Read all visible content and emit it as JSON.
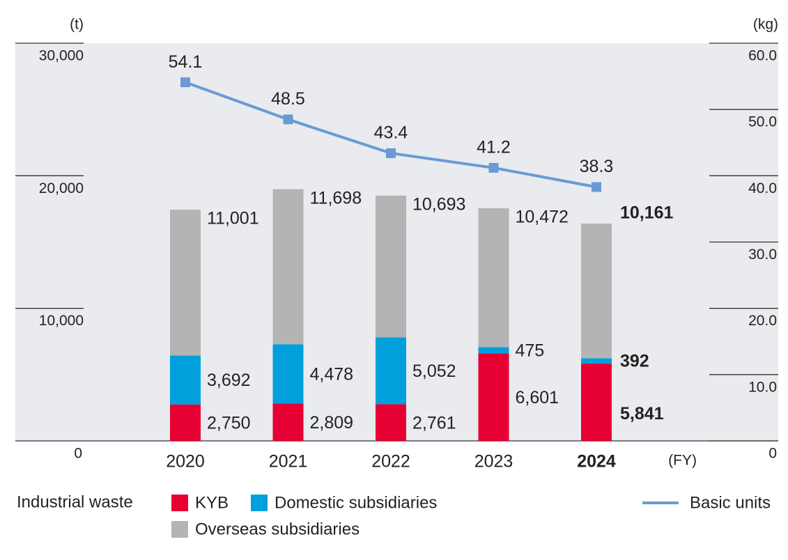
{
  "chart_data": {
    "type": "bar",
    "ylabel": "(t)",
    "y2label": "(kg)",
    "xlabel": "(FY)",
    "legend_title": "Industrial waste",
    "categories": [
      "2020",
      "2021",
      "2022",
      "2023",
      "2024"
    ],
    "stacked": true,
    "series": [
      {
        "name": "KYB",
        "color": "#e60033",
        "values": [
          2750,
          2809,
          2761,
          6601,
          5841
        ],
        "value_labels": [
          "2,750",
          "2,809",
          "2,761",
          "6,601",
          "5,841"
        ]
      },
      {
        "name": "Domestic subsidiaries",
        "color": "#00a0dc",
        "values": [
          3692,
          4478,
          5052,
          475,
          392
        ],
        "value_labels": [
          "3,692",
          "4,478",
          "5,052",
          "475",
          "392"
        ]
      },
      {
        "name": "Overseas subsidiaries",
        "color": "#b4b4b4",
        "values": [
          11001,
          11698,
          10693,
          10472,
          10161
        ],
        "value_labels": [
          "11,001",
          "11,698",
          "10,693",
          "10,472",
          "10,161"
        ]
      },
      {
        "name": "Basic units",
        "type": "line",
        "axis": "y2",
        "color": "#6a9ad4",
        "values": [
          54.1,
          48.5,
          43.4,
          41.2,
          38.3
        ]
      }
    ],
    "ylim": [
      0,
      30000
    ],
    "yticks": [
      0,
      {
        "value": 10000,
        "label": "10,000"
      },
      {
        "value": 20000,
        "label": "20,000"
      },
      {
        "value": 30000,
        "label": "30,000"
      }
    ],
    "y2lim": [
      0,
      60
    ],
    "y2ticks": [
      0,
      {
        "value": 10,
        "label": "10.0"
      },
      {
        "value": 20,
        "label": "20.0"
      },
      {
        "value": 30,
        "label": "30.0"
      },
      {
        "value": 40,
        "label": "40.0"
      },
      {
        "value": 50,
        "label": "50.0"
      },
      {
        "value": 60,
        "label": "60.0"
      }
    ],
    "background": "#e9ebee"
  }
}
